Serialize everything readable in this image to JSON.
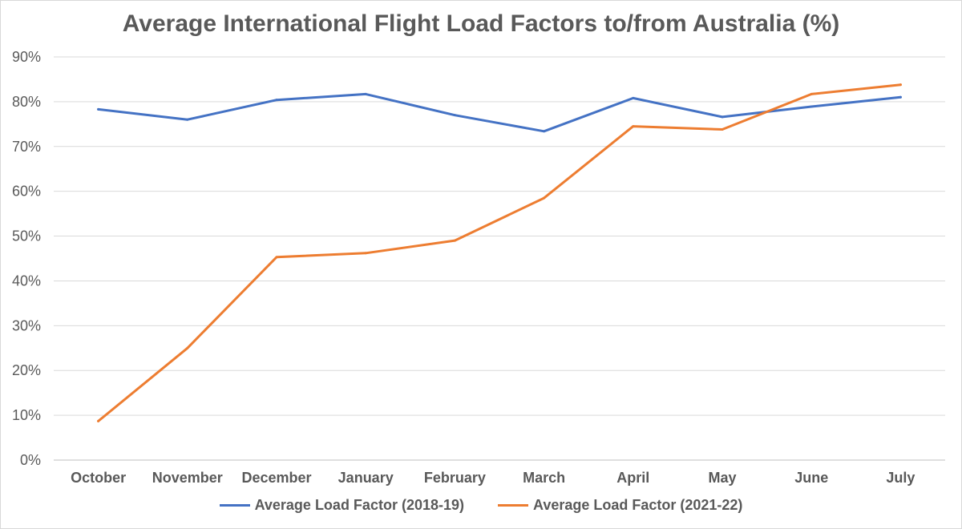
{
  "chart_data": {
    "type": "line",
    "title": "Average International Flight Load Factors to/from Australia (%)",
    "xlabel": "",
    "ylabel": "",
    "categories": [
      "October",
      "November",
      "December",
      "January",
      "February",
      "March",
      "April",
      "May",
      "June",
      "July"
    ],
    "ylim": [
      0,
      90
    ],
    "yticks": [
      0,
      10,
      20,
      30,
      40,
      50,
      60,
      70,
      80,
      90
    ],
    "ytick_format": "%",
    "grid": true,
    "legend_position": "bottom",
    "series": [
      {
        "name": "Average Load Factor (2018-19)",
        "color": "#4472c4",
        "values": [
          78.3,
          76.0,
          80.4,
          81.7,
          77.0,
          73.4,
          80.8,
          76.6,
          78.9,
          81.0
        ]
      },
      {
        "name": "Average Load Factor (2021-22)",
        "color": "#ed7d31",
        "values": [
          8.7,
          25.0,
          45.3,
          46.2,
          49.0,
          58.5,
          74.5,
          73.8,
          81.7,
          83.8
        ]
      }
    ]
  }
}
